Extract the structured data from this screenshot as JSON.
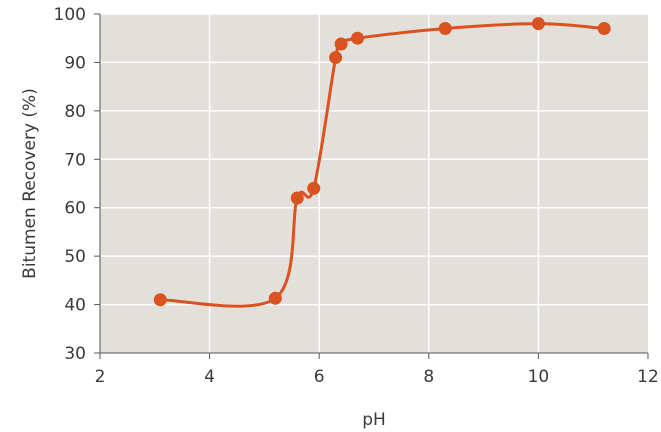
{
  "chart_data": {
    "type": "line",
    "title": "",
    "xlabel": "pH",
    "ylabel": "Bitumen Recovery (%)",
    "xlim": [
      2,
      12
    ],
    "ylim": [
      30,
      100
    ],
    "x_ticks": [
      "2",
      "4",
      "6",
      "8",
      "10",
      "12"
    ],
    "y_ticks": [
      "30",
      "40",
      "50",
      "60",
      "70",
      "80",
      "90",
      "100"
    ],
    "grid": true,
    "series": [
      {
        "x": [
          3.1,
          5.2,
          5.6,
          5.9,
          6.3,
          6.4,
          6.7,
          8.3,
          10.0,
          11.2
        ],
        "y": [
          41,
          41.3,
          62,
          64,
          91,
          93.8,
          95,
          97,
          98,
          97
        ],
        "marker": "circle"
      }
    ],
    "colors": {
      "series": "#d9521f",
      "plot_background": "#e3dfda",
      "grid": "#ffffff",
      "axis": "#555555"
    }
  }
}
